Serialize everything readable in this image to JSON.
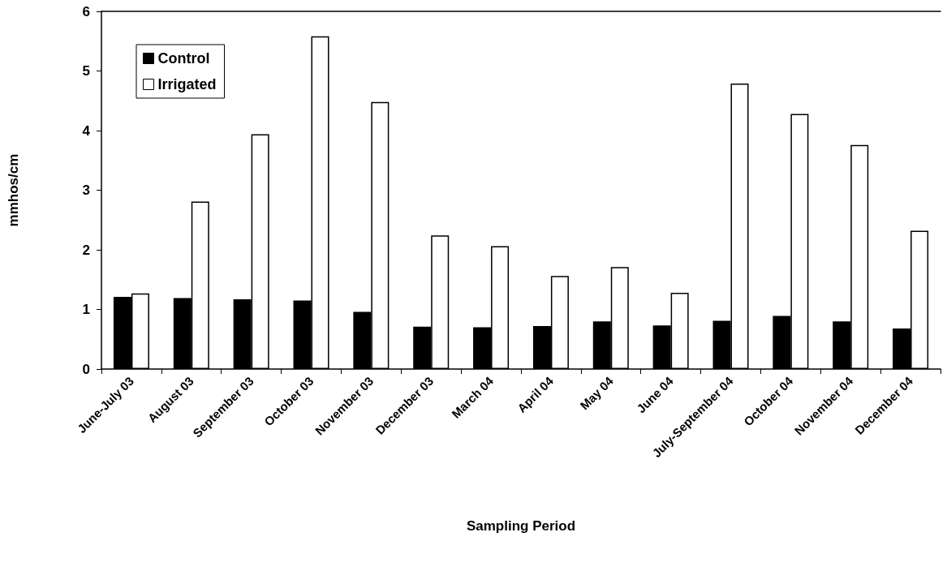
{
  "chart_data": {
    "type": "bar",
    "xlabel": "Sampling Period",
    "ylabel": "mmhos/cm",
    "categories": [
      "June-July 03",
      "August 03",
      "September 03",
      "October 03",
      "November 03",
      "December 03",
      "March 04",
      "April 04",
      "May 04",
      "June 04",
      "July-September 04",
      "October 04",
      "November 04",
      "December 04"
    ],
    "series": [
      {
        "name": "Control",
        "color": "#000000",
        "values": [
          1.21,
          1.19,
          1.17,
          1.15,
          0.96,
          0.71,
          0.7,
          0.72,
          0.8,
          0.73,
          0.81,
          0.89,
          0.8,
          0.68
        ]
      },
      {
        "name": "Irrigated",
        "color": "#ffffff",
        "values": [
          1.27,
          2.81,
          3.94,
          5.58,
          4.48,
          2.24,
          2.06,
          1.56,
          1.71,
          1.28,
          4.79,
          4.28,
          3.76,
          2.32
        ]
      }
    ],
    "ylim": [
      0,
      6
    ],
    "yticks": [
      0,
      1,
      2,
      3,
      4,
      5,
      6
    ],
    "grid": false,
    "legend": "top left"
  }
}
